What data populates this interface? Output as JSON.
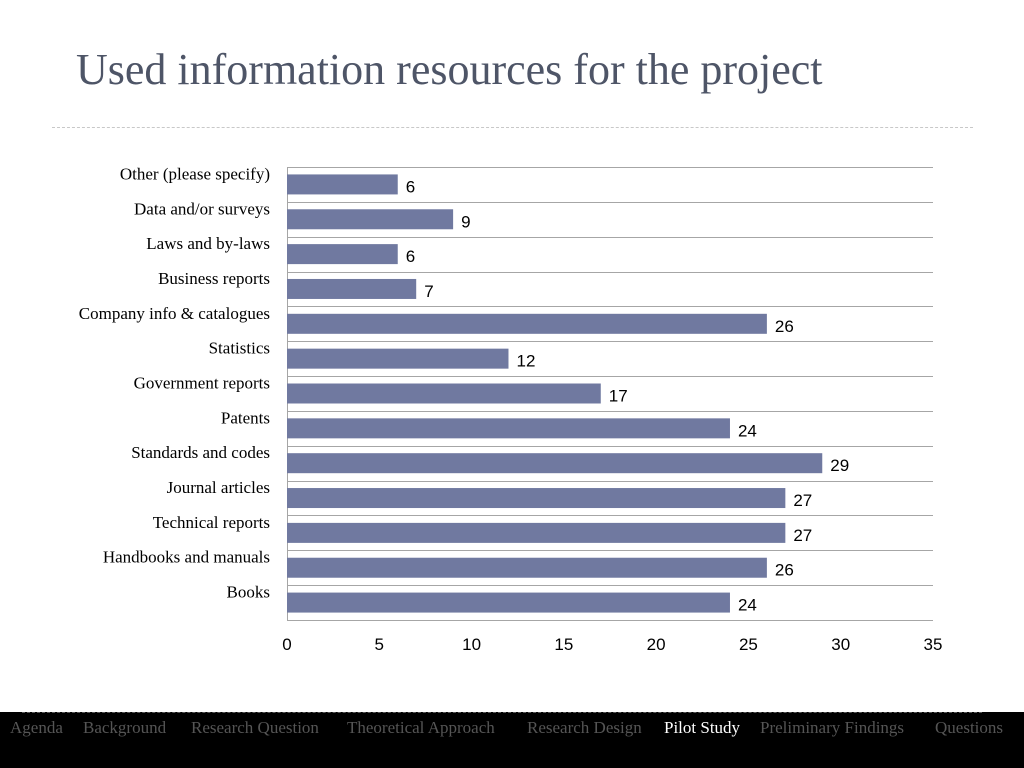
{
  "slide": {
    "title": "Used information resources for the project"
  },
  "chart_data": {
    "type": "bar",
    "orientation": "horizontal",
    "categories": [
      "Other (please specify)",
      "Data and/or surveys",
      "Laws and by-laws",
      "Business reports",
      "Company info & catalogues",
      "Statistics",
      "Government reports",
      "Patents",
      "Standards and codes",
      "Journal articles",
      "Technical reports",
      "Handbooks and manuals",
      "Books"
    ],
    "values": [
      6,
      9,
      6,
      7,
      26,
      12,
      17,
      24,
      29,
      27,
      27,
      26,
      24
    ],
    "xlim": [
      0,
      35
    ],
    "xticks": [
      0,
      5,
      10,
      15,
      20,
      25,
      30,
      35
    ],
    "bar_color": "#7079a0",
    "data_labels": true,
    "grid": "horizontal separators",
    "legend": "none"
  },
  "nav": {
    "items": [
      {
        "label": "Agenda",
        "active": false
      },
      {
        "label": "Background",
        "active": false
      },
      {
        "label": "Research Question",
        "active": false
      },
      {
        "label": "Theoretical Approach",
        "active": false
      },
      {
        "label": "Research Design",
        "active": false
      },
      {
        "label": "Pilot Study",
        "active": true
      },
      {
        "label": "Preliminary Findings",
        "active": false
      },
      {
        "label": "Questions",
        "active": false
      }
    ]
  },
  "colors": {
    "title": "#4e5567",
    "bar": "#7079a0",
    "footer_bg": "#000000",
    "nav_inactive": "#555555",
    "nav_active": "#ffffff"
  }
}
